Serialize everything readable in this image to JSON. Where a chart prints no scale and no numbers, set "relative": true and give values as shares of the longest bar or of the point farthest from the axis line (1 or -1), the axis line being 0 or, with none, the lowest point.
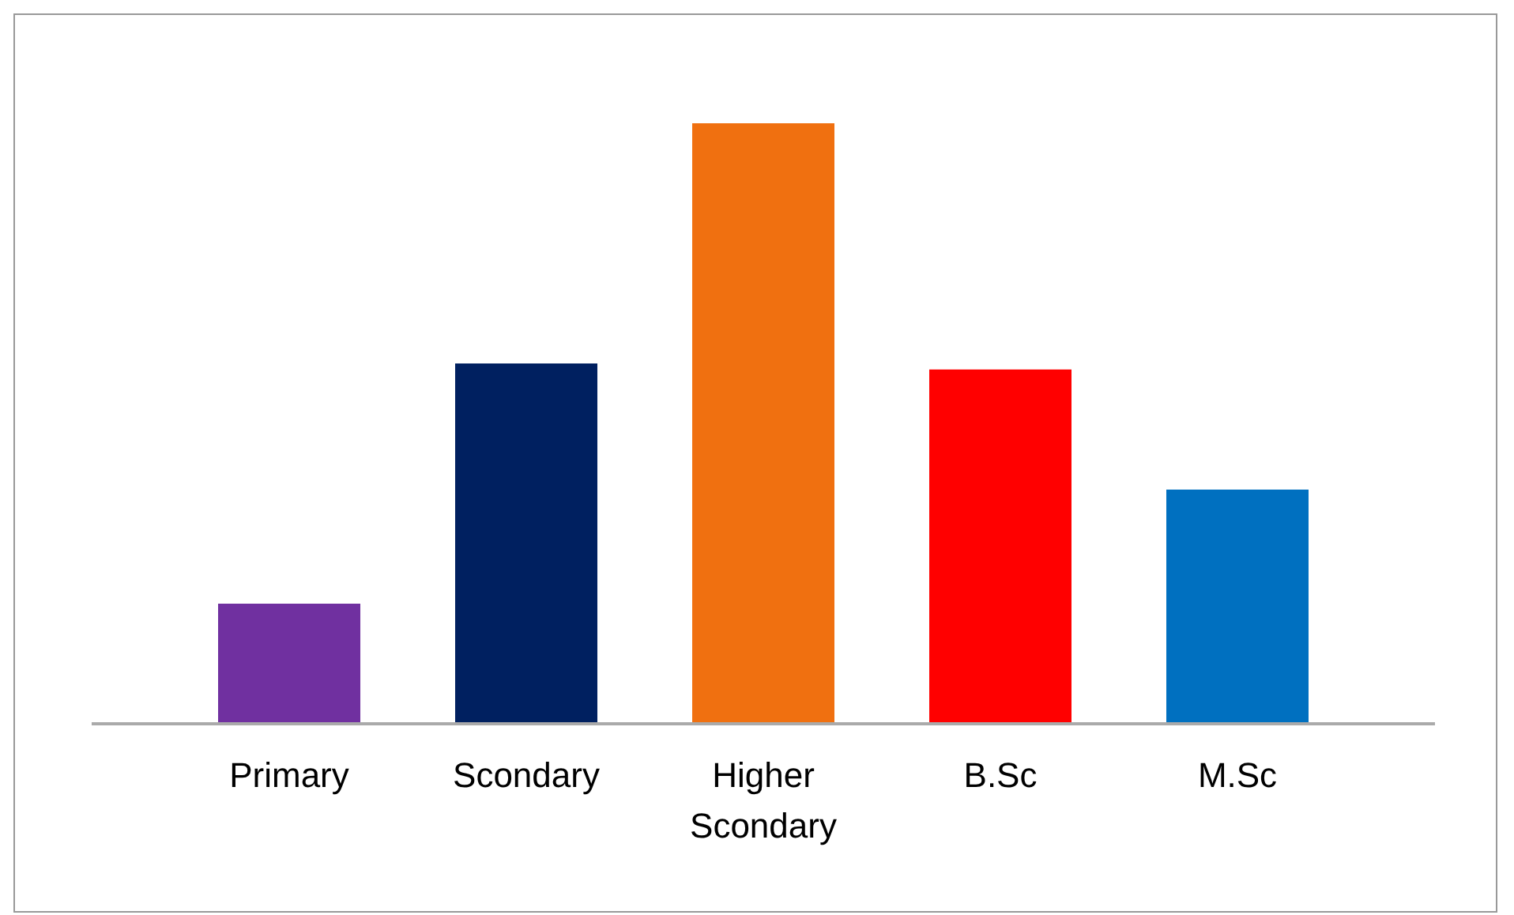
{
  "chart_data": {
    "type": "bar",
    "relative": true,
    "categories": [
      "Primary",
      "Scondary",
      "Higher Scondary",
      "B.Sc",
      "M.Sc"
    ],
    "values": [
      0.2,
      0.6,
      1,
      0.59,
      0.39
    ],
    "colors": [
      "#7030a0",
      "#002060",
      "#f07010",
      "#ff0000",
      "#0070c0"
    ]
  }
}
